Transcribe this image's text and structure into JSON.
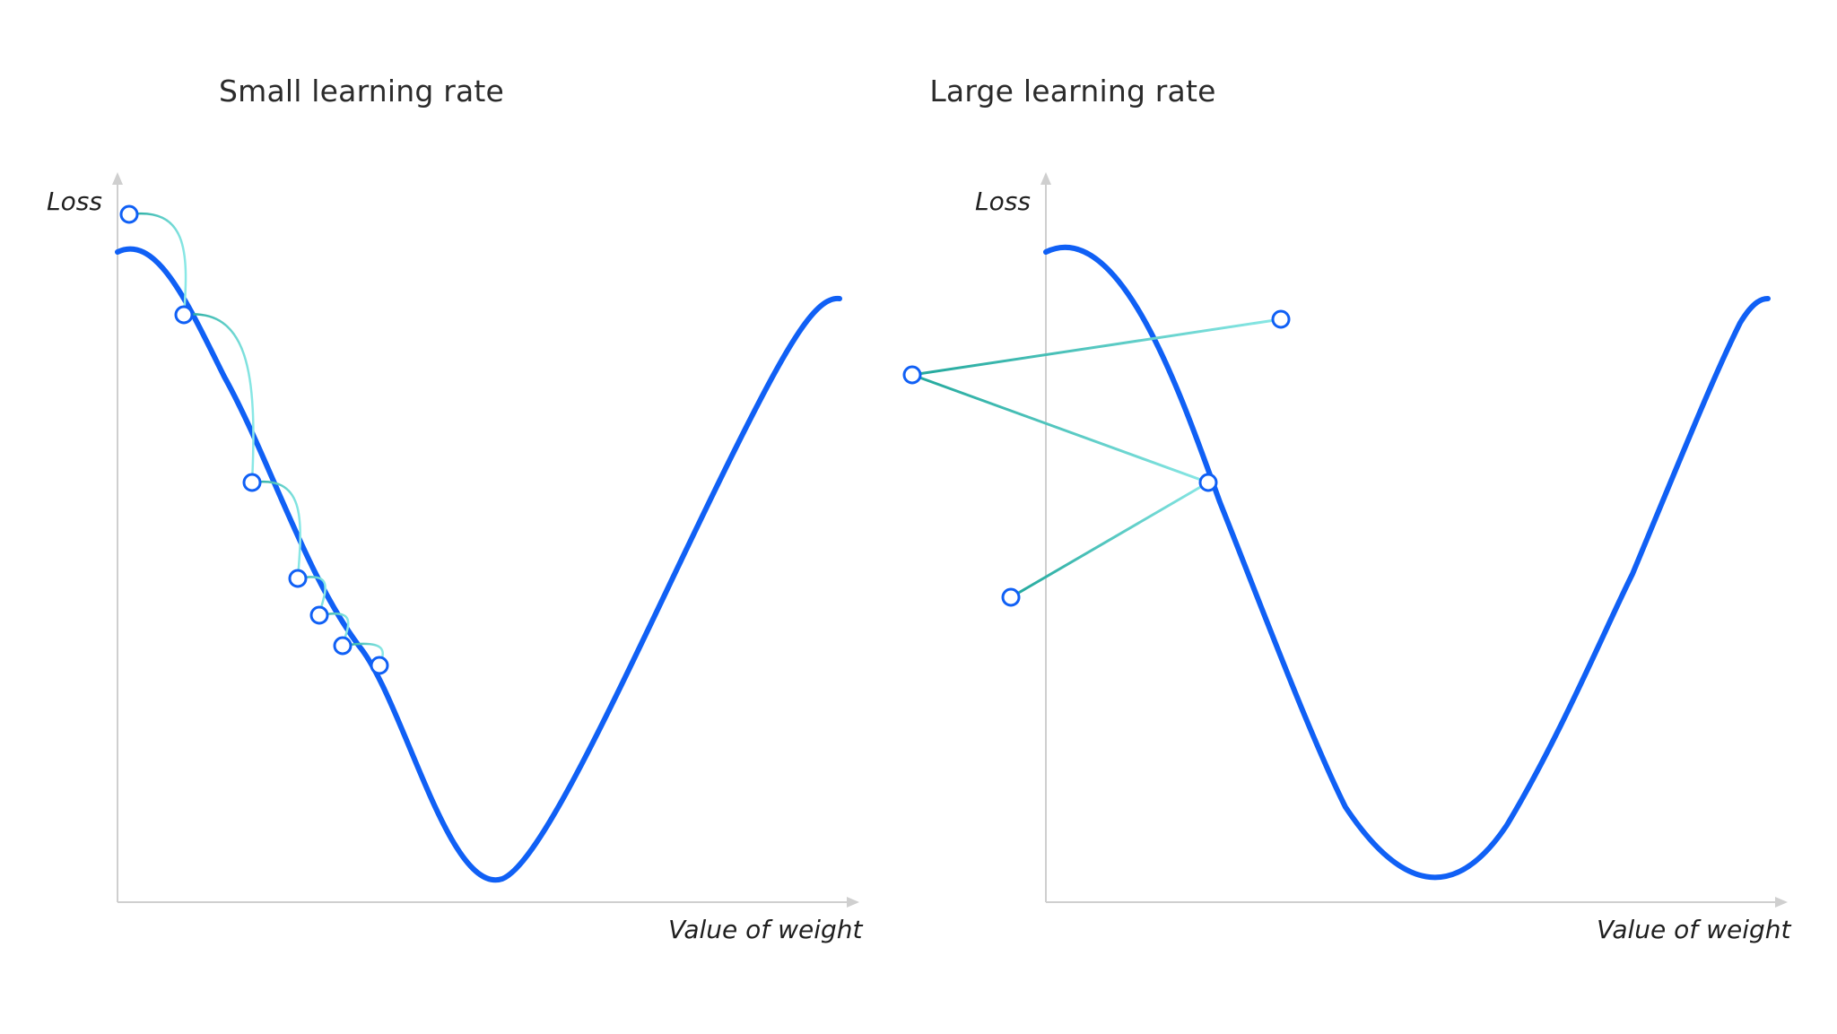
{
  "colors": {
    "curve": "#1060f5",
    "step_dark": "#21a79b",
    "step_light": "#8ae8e6",
    "axis": "#cfcfcf",
    "text": "#2b2b2b",
    "marker_fill": "#ffffff"
  },
  "panels": [
    {
      "title": "Small learning rate",
      "y_axis_label": "Loss",
      "x_axis_label": "Value of weight",
      "step_style": "arc",
      "points": [
        [
          144,
          239
        ],
        [
          205,
          351
        ],
        [
          281,
          538
        ],
        [
          332,
          645
        ],
        [
          356,
          686
        ],
        [
          382,
          720
        ],
        [
          423,
          742
        ]
      ]
    },
    {
      "title": "Large learning rate",
      "y_axis_label": "Loss",
      "x_axis_label": "Value of weight",
      "step_style": "straight",
      "points": [
        [
          1428,
          356
        ],
        [
          1017,
          418
        ],
        [
          1347,
          538
        ],
        [
          1127,
          666
        ]
      ]
    }
  ]
}
